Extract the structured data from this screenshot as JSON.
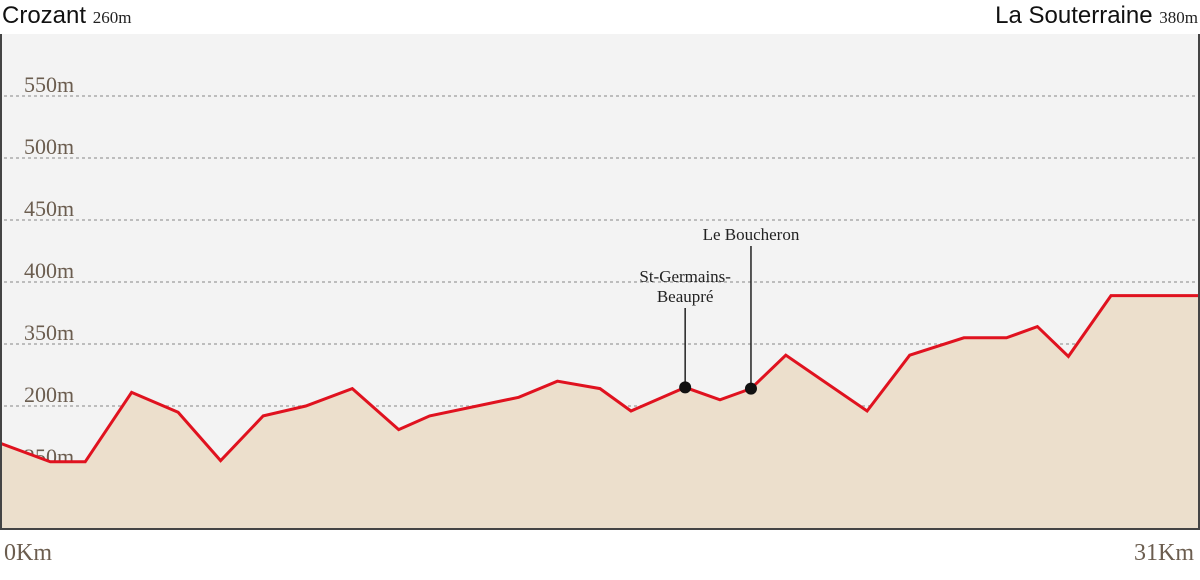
{
  "header": {
    "start_name": "Crozant",
    "start_elevation": "260m",
    "end_name": "La Souterraine",
    "end_elevation": "380m"
  },
  "colors": {
    "background": "#f3f3f3",
    "fill": "#ecdfcc",
    "line": "#e0121f",
    "grid": "#bdbdbd",
    "tick_text": "#6b5d4f",
    "frame": "#444444"
  },
  "chart_data": {
    "type": "area",
    "title": "",
    "xlabel": "",
    "ylabel": "",
    "x_tick_labels": [
      "0Km",
      "31Km"
    ],
    "y_tick_labels": [
      "550m",
      "500m",
      "450m",
      "400m",
      "350m",
      "200m",
      "250m"
    ],
    "xlim": [
      0,
      31
    ],
    "ylim": [
      190,
      590
    ],
    "grid": true,
    "series": [
      {
        "points": [
          [
            0,
            260
          ],
          [
            1.3,
            245
          ],
          [
            2.2,
            245
          ],
          [
            3.4,
            301
          ],
          [
            4.6,
            285
          ],
          [
            5.7,
            246
          ],
          [
            6.8,
            282
          ],
          [
            7.9,
            290
          ],
          [
            9.1,
            304
          ],
          [
            10.3,
            271
          ],
          [
            11.1,
            282
          ],
          [
            13.4,
            297
          ],
          [
            14.4,
            310
          ],
          [
            15.5,
            304
          ],
          [
            16.3,
            286
          ],
          [
            17.7,
            305
          ],
          [
            18.6,
            295
          ],
          [
            19.4,
            304
          ],
          [
            20.3,
            331
          ],
          [
            22.4,
            286
          ],
          [
            23.5,
            331
          ],
          [
            24.9,
            345
          ],
          [
            26.0,
            345
          ],
          [
            26.8,
            354
          ],
          [
            27.6,
            330
          ],
          [
            28.7,
            379
          ],
          [
            31,
            379
          ]
        ]
      }
    ],
    "annotations": [
      {
        "label_lines": [
          "St-Germains-",
          "Beaupré"
        ],
        "x": 17.7,
        "y": 305
      },
      {
        "label_lines": [
          "Le Boucheron"
        ],
        "x": 19.4,
        "y": 304
      }
    ]
  }
}
